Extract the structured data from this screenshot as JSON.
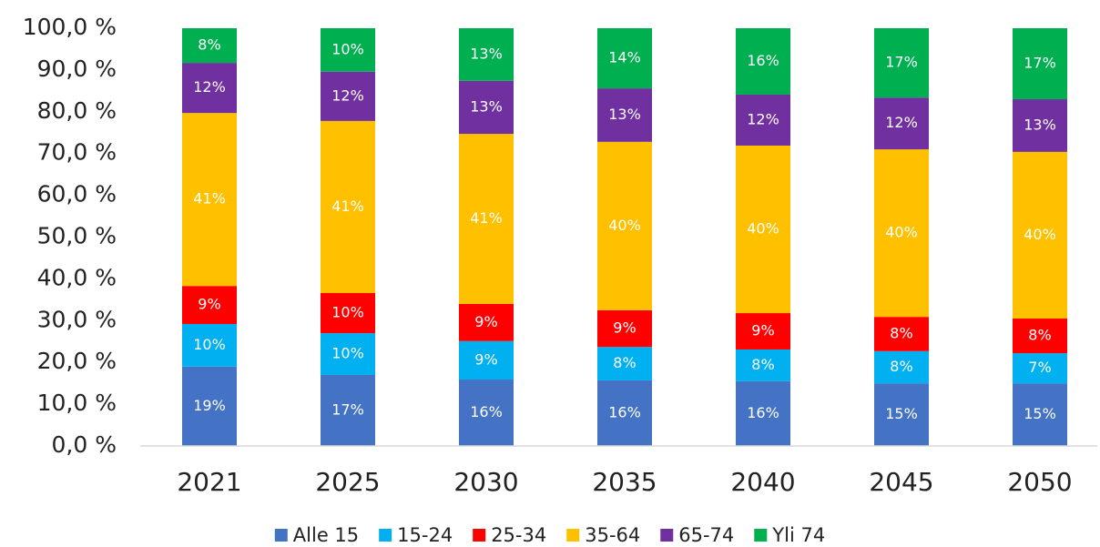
{
  "chart_data": {
    "type": "stacked_bar",
    "categories": [
      "2021",
      "2025",
      "2030",
      "2035",
      "2040",
      "2045",
      "2050"
    ],
    "series": [
      {
        "name": "Alle 15",
        "color": "#4472c4",
        "values": [
          19.0,
          17.0,
          15.9,
          15.7,
          15.5,
          15.0,
          15.0
        ],
        "value_labels": [
          "19%",
          "17%",
          "16%",
          "16%",
          "16%",
          "15%",
          "15%"
        ]
      },
      {
        "name": "15-24",
        "color": "#00b0f0",
        "values": [
          10.2,
          10.0,
          9.2,
          8.0,
          7.6,
          7.7,
          7.2
        ],
        "value_labels": [
          "10%",
          "10%",
          "9%",
          "8%",
          "8%",
          "8%",
          "7%"
        ]
      },
      {
        "name": "25-34",
        "color": "#ff0000",
        "values": [
          9.1,
          9.6,
          8.9,
          8.8,
          8.7,
          8.2,
          8.3
        ],
        "value_labels": [
          "9%",
          "10%",
          "9%",
          "9%",
          "9%",
          "8%",
          "8%"
        ]
      },
      {
        "name": "35-64",
        "color": "#ffc000",
        "values": [
          41.4,
          41.2,
          40.7,
          40.3,
          40.1,
          40.1,
          39.9
        ],
        "value_labels": [
          "41%",
          "41%",
          "41%",
          "40%",
          "40%",
          "40%",
          "40%"
        ]
      },
      {
        "name": "65-74",
        "color": "#7030a0",
        "values": [
          12.0,
          11.8,
          12.7,
          12.8,
          12.2,
          12.4,
          12.6
        ],
        "value_labels": [
          "12%",
          "12%",
          "13%",
          "13%",
          "12%",
          "12%",
          "13%"
        ]
      },
      {
        "name": "Yli 74",
        "color": "#00b050",
        "values": [
          8.3,
          10.4,
          12.6,
          14.4,
          15.9,
          16.6,
          17.0
        ],
        "value_labels": [
          "8%",
          "10%",
          "13%",
          "14%",
          "16%",
          "17%",
          "17%"
        ]
      }
    ],
    "ylim": [
      0,
      100
    ],
    "yticks": [
      {
        "value": 0,
        "label": "0,0 %"
      },
      {
        "value": 10,
        "label": "10,0 %"
      },
      {
        "value": 20,
        "label": "20,0 %"
      },
      {
        "value": 30,
        "label": "30,0 %"
      },
      {
        "value": 40,
        "label": "40,0 %"
      },
      {
        "value": 50,
        "label": "50,0 %"
      },
      {
        "value": 60,
        "label": "60,0 %"
      },
      {
        "value": 70,
        "label": "70,0 %"
      },
      {
        "value": 80,
        "label": "80,0 %"
      },
      {
        "value": 90,
        "label": "90,0 %"
      },
      {
        "value": 100,
        "label": "100,0 %"
      }
    ],
    "grid": false,
    "legend": "bottom"
  }
}
